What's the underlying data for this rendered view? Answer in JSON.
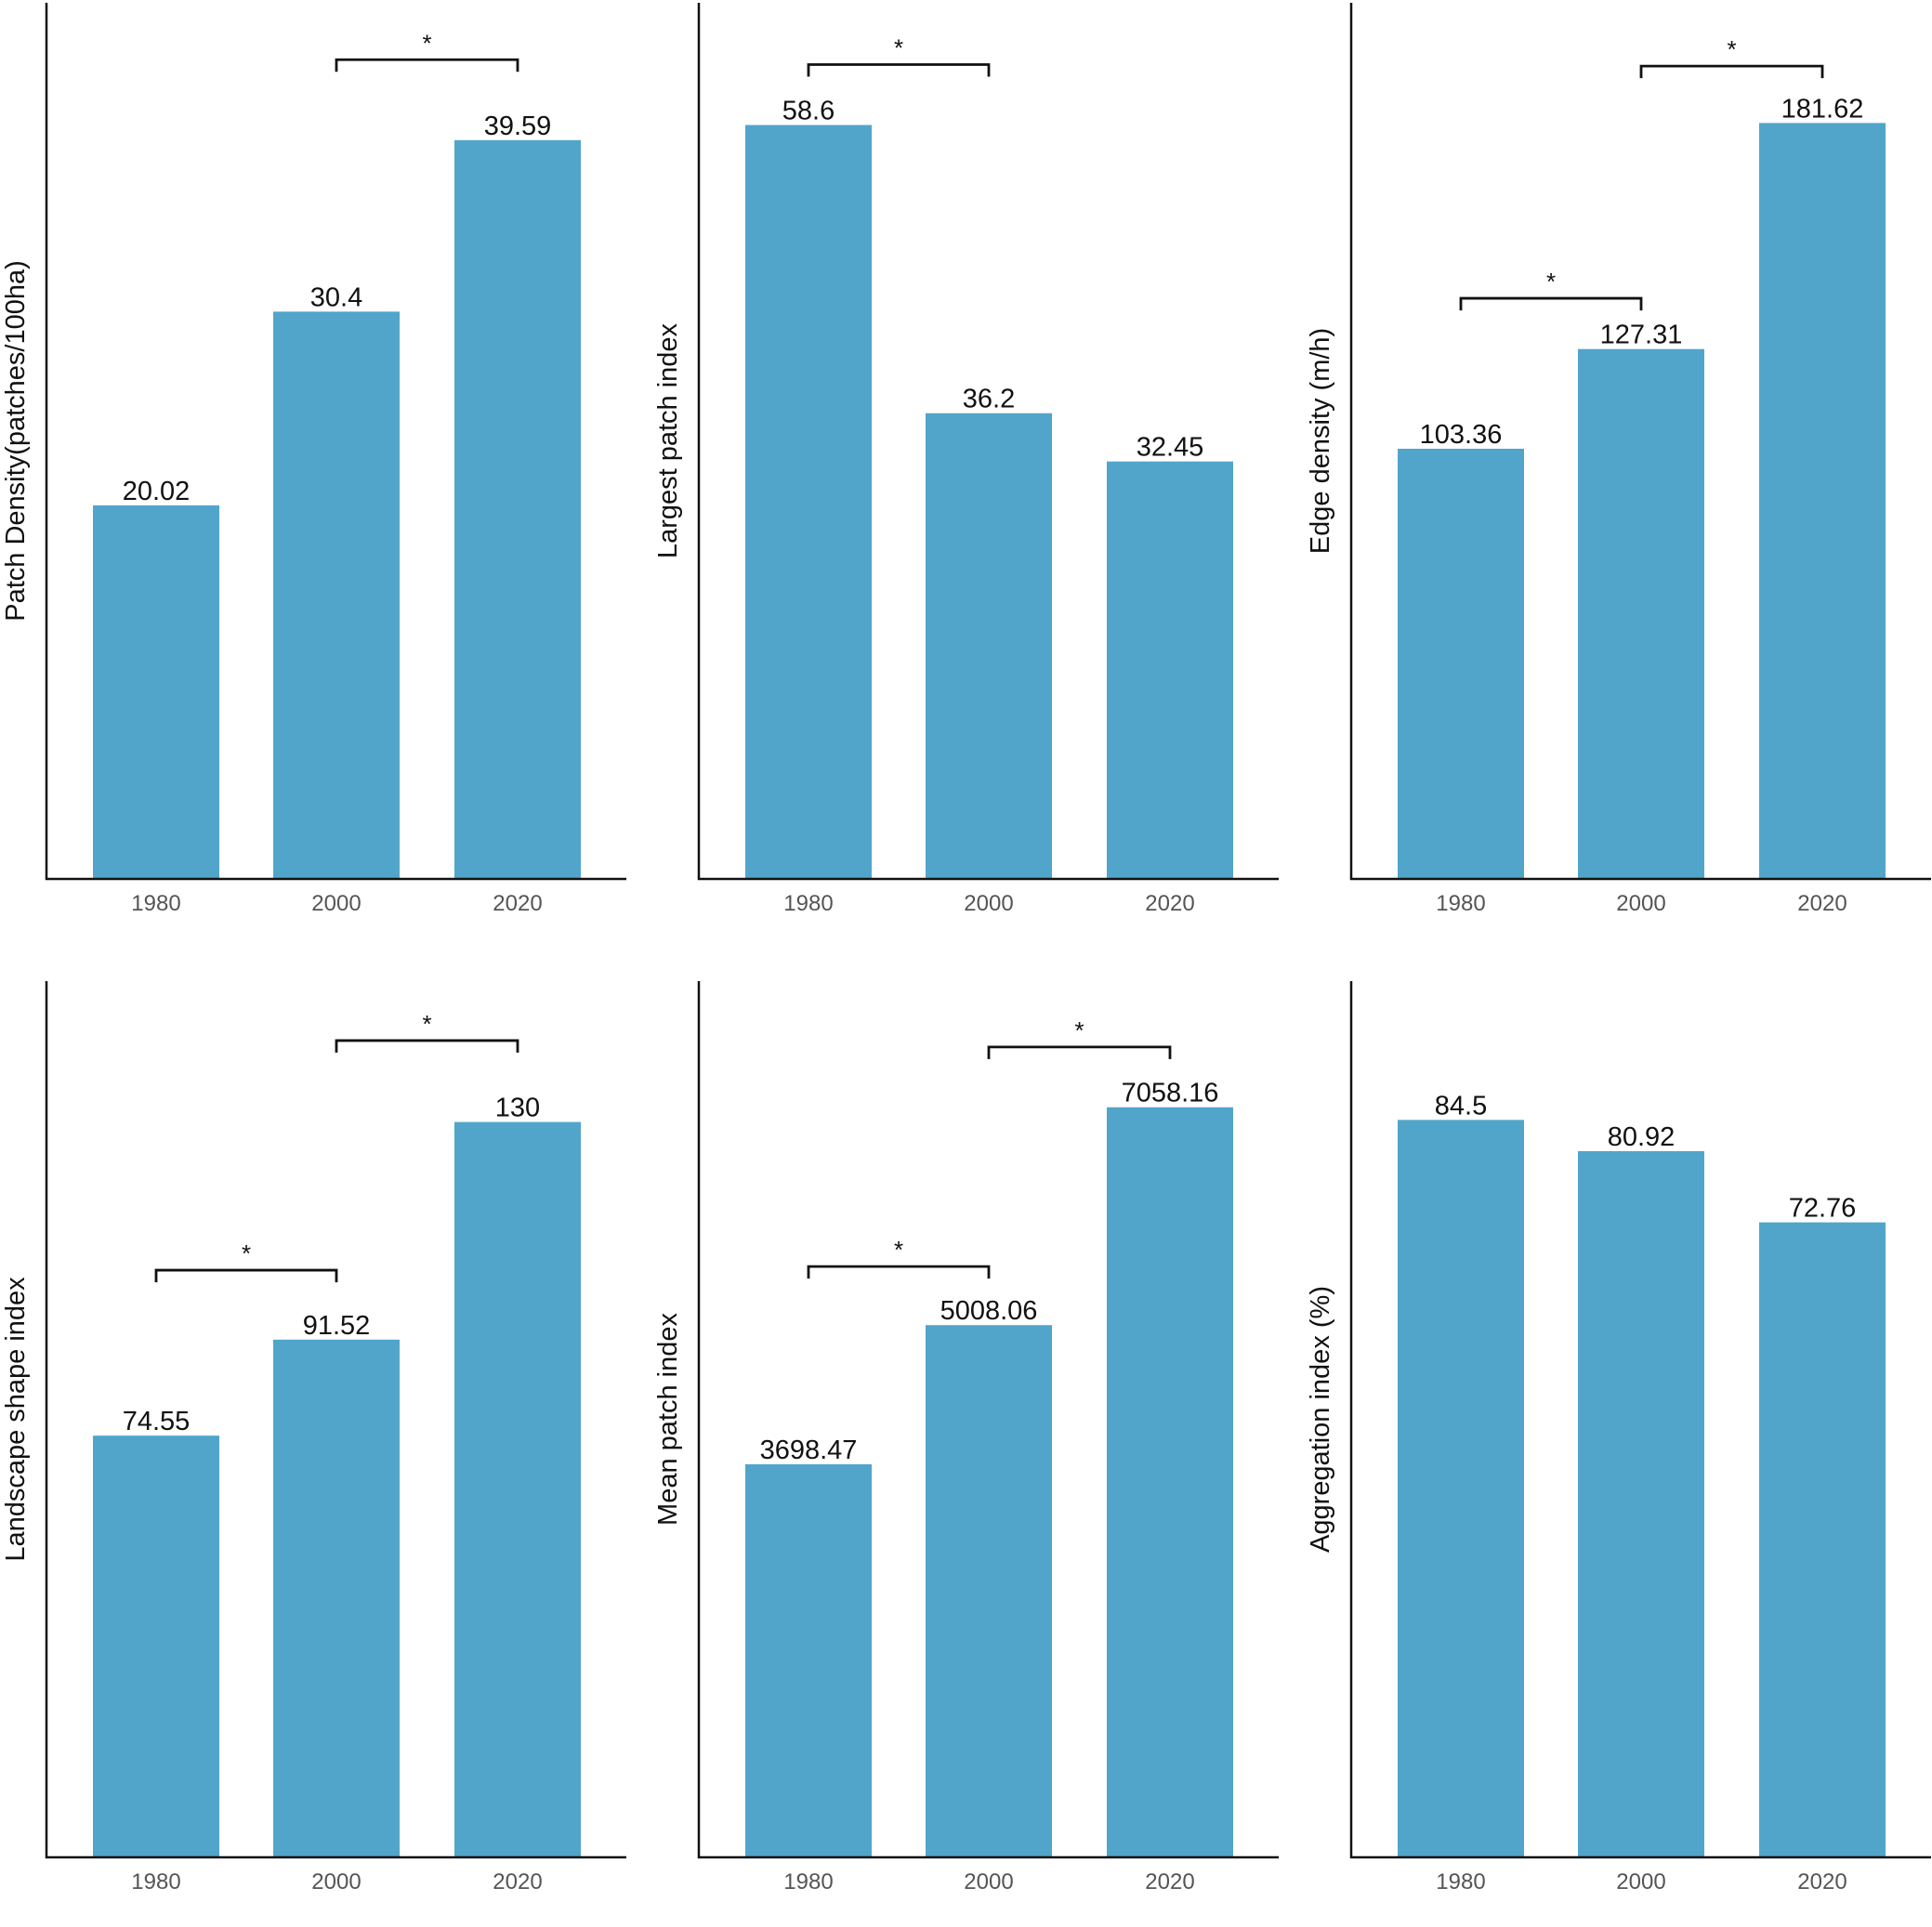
{
  "colors": {
    "bar": "#51a5ca",
    "axis": "#111111",
    "tick_text": "#555555"
  },
  "chart_data": [
    {
      "type": "bar",
      "title": "",
      "ylabel": "Patch Density(patches/100ha)",
      "categories": [
        "1980",
        "2000",
        "2020"
      ],
      "values": [
        20.02,
        30.4,
        39.59
      ],
      "value_labels": [
        "20.02",
        "30.4",
        "39.59"
      ],
      "ylim": [
        0,
        46.95
      ],
      "significance": [
        {
          "from": 1,
          "to": 2,
          "label": "*",
          "level": 43.9
        }
      ]
    },
    {
      "type": "bar",
      "title": "",
      "ylabel": "Largest patch index",
      "categories": [
        "1980",
        "2000",
        "2020"
      ],
      "values": [
        58.6,
        36.2,
        32.45
      ],
      "value_labels": [
        "58.6",
        "36.2",
        "32.45"
      ],
      "ylim": [
        0,
        68.1
      ],
      "significance": [
        {
          "from": 0,
          "to": 1,
          "label": "*",
          "level": 63.3
        }
      ]
    },
    {
      "type": "bar",
      "title": "",
      "ylabel": "Edge density (m/h)",
      "categories": [
        "1980",
        "2000",
        "2020"
      ],
      "values": [
        103.36,
        127.31,
        181.62
      ],
      "value_labels": [
        "103.36",
        "127.31",
        "181.62"
      ],
      "ylim": [
        0,
        210.5
      ],
      "significance": [
        {
          "from": 1,
          "to": 2,
          "label": "*",
          "level": 195.3
        },
        {
          "from": 0,
          "to": 1,
          "label": "*",
          "level": 139.5
        }
      ]
    },
    {
      "type": "bar",
      "title": "",
      "ylabel": "Landscape shape index",
      "categories": [
        "1980",
        "2000",
        "2020"
      ],
      "values": [
        74.55,
        91.52,
        130
      ],
      "value_labels": [
        "74.55",
        "91.52",
        "130"
      ],
      "ylim": [
        0,
        154.9
      ],
      "significance": [
        {
          "from": 1,
          "to": 2,
          "label": "*",
          "level": 144.4
        },
        {
          "from": 0,
          "to": 1,
          "label": "*",
          "level": 103.8
        }
      ]
    },
    {
      "type": "bar",
      "title": "",
      "ylabel": "Mean patch index",
      "categories": [
        "1980",
        "2000",
        "2020"
      ],
      "values": [
        3698.47,
        5008.06,
        7058.16
      ],
      "value_labels": [
        "3698.47",
        "5008.06",
        "7058.16"
      ],
      "ylim": [
        0,
        8245
      ],
      "significance": [
        {
          "from": 1,
          "to": 2,
          "label": "*",
          "level": 7625
        },
        {
          "from": 0,
          "to": 1,
          "label": "*",
          "level": 5560
        }
      ]
    },
    {
      "type": "bar",
      "title": "",
      "ylabel": "Aggregation index (%)",
      "categories": [
        "1980",
        "2000",
        "2020"
      ],
      "values": [
        84.5,
        80.92,
        72.76
      ],
      "value_labels": [
        "84.5",
        "80.92",
        "72.76"
      ],
      "ylim": [
        0,
        100.4
      ],
      "significance": []
    }
  ]
}
